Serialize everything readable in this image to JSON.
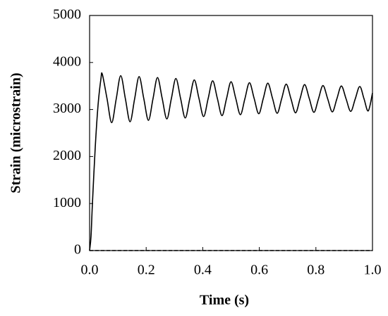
{
  "chart_data": {
    "type": "line",
    "xlabel": "Time (s)",
    "ylabel": "Strain (microstrain)",
    "x": [
      0,
      0.005,
      0.01,
      0.02,
      0.03,
      0.04,
      0.045,
      0.0615,
      0.078,
      0.094,
      0.11,
      0.1265,
      0.143,
      0.159,
      0.175,
      0.1915,
      0.208,
      0.224,
      0.24,
      0.2565,
      0.273,
      0.289,
      0.305,
      0.3215,
      0.338,
      0.354,
      0.37,
      0.3865,
      0.403,
      0.419,
      0.435,
      0.4515,
      0.468,
      0.484,
      0.5,
      0.5165,
      0.533,
      0.549,
      0.565,
      0.5815,
      0.598,
      0.614,
      0.63,
      0.6465,
      0.663,
      0.679,
      0.695,
      0.7115,
      0.728,
      0.744,
      0.76,
      0.7765,
      0.793,
      0.809,
      0.825,
      0.8415,
      0.858,
      0.874,
      0.89,
      0.9065,
      0.923,
      0.939,
      0.955,
      0.97,
      0.985,
      1.0
    ],
    "series": [
      {
        "color": "#000000",
        "dash": false,
        "values": [
          0,
          300,
          1000,
          2200,
          3100,
          3650,
          3750,
          3235,
          2720,
          3220,
          3720,
          3230,
          2740,
          3220,
          3700,
          3235,
          2770,
          3225,
          3680,
          3240,
          2800,
          3230,
          3660,
          3240,
          2820,
          3225,
          3630,
          3240,
          2850,
          3230,
          3610,
          3240,
          2870,
          3230,
          3590,
          3240,
          2890,
          3230,
          3570,
          3240,
          2910,
          3235,
          3560,
          3240,
          2920,
          3230,
          3540,
          3235,
          2930,
          3230,
          3530,
          3235,
          2940,
          3225,
          3510,
          3230,
          2950,
          3225,
          3500,
          3230,
          2960,
          3225,
          3490,
          3230,
          2970,
          3350
        ]
      },
      {
        "color": "#000000",
        "dash": true,
        "values": [
          0,
          0,
          0,
          0,
          0,
          0,
          0,
          0,
          0,
          0,
          0,
          0,
          0,
          0,
          0,
          0,
          0,
          0,
          0,
          0,
          0,
          0,
          0,
          0,
          0,
          0,
          0,
          0,
          0,
          0,
          0,
          0,
          0,
          0,
          0,
          0,
          0,
          0,
          0,
          0,
          0,
          0,
          0,
          0,
          0,
          0,
          0,
          0,
          0,
          0,
          0,
          0,
          0,
          0,
          0,
          0,
          0,
          0,
          0,
          0,
          0,
          0,
          0,
          0,
          0,
          0
        ]
      }
    ],
    "xlim": [
      0,
      1
    ],
    "xticks": [
      {
        "value": 0,
        "label": "0.0"
      },
      0.2,
      0.4,
      0.6,
      0.8,
      {
        "value": 1,
        "label": "1.0"
      }
    ],
    "ylim": [
      0,
      5000
    ],
    "yticks": [
      0,
      1000,
      2000,
      3000,
      4000,
      5000
    ],
    "grid": false
  }
}
